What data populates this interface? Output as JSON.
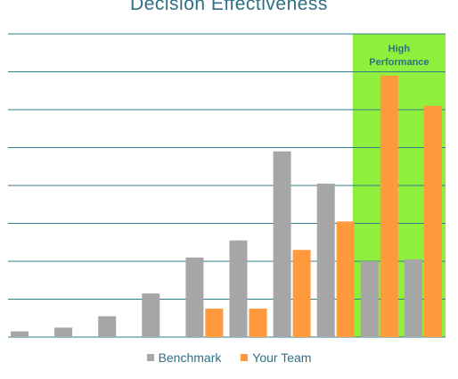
{
  "chart_data": {
    "type": "bar",
    "title": "Decision Effectiveness",
    "xlabel": "",
    "ylabel": "",
    "ylim": [
      0,
      8
    ],
    "grid": true,
    "legend_position": "bottom",
    "categories": [
      "",
      "",
      "",
      "",
      "",
      "",
      "",
      "",
      "",
      ""
    ],
    "series": [
      {
        "name": "Benchmark",
        "color": "#a6a6a6",
        "values": [
          0.15,
          0.25,
          0.55,
          1.15,
          2.1,
          2.55,
          4.9,
          4.05,
          2.0,
          2.05
        ]
      },
      {
        "name": "Your Team",
        "color": "#ff9a3c",
        "values": [
          0,
          0,
          0,
          0,
          0.75,
          0.75,
          2.3,
          3.05,
          6.9,
          6.1
        ]
      }
    ],
    "highlight": {
      "label_line1": "High",
      "label_line2": "Performance",
      "from_category_index": 8,
      "to_category_index": 9,
      "color": "#90ef3c"
    },
    "gridline_color": "#2e7d8c",
    "text_color": "#2f6f86"
  }
}
